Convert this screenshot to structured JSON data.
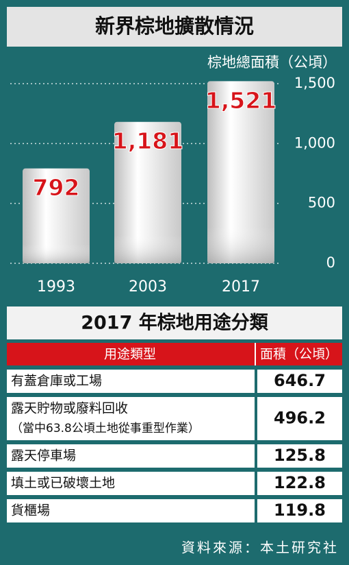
{
  "chart_data": {
    "type": "bar",
    "title": "新界棕地擴散情況",
    "y_label": "棕地總面積（公頃）",
    "categories": [
      "1993",
      "2003",
      "2017"
    ],
    "values": [
      792,
      1181,
      1521
    ],
    "value_labels": [
      "792",
      "1,181",
      "1,521"
    ],
    "color": "#e6e6e6",
    "label_color": "#d7141a",
    "ylim": [
      0,
      1600
    ],
    "yticks": [
      0,
      500,
      {
        "value": 1000,
        "label": "1,000"
      },
      {
        "value": 1500,
        "label": "1,500"
      }
    ],
    "grid": true
  },
  "table": {
    "title": "2017 年棕地用途分類",
    "columns": [
      "用途類型",
      "面積（公頃）"
    ],
    "rows": [
      {
        "use": "有蓋倉庫或工場",
        "area": 646.7
      },
      {
        "use": "露天貯物或廢料回收",
        "note": "（當中63.8公頃土地從事重型作業）",
        "area": 496.2
      },
      {
        "use": "露天停車場",
        "area": 125.8
      },
      {
        "use": "填土或已破壞土地",
        "area": 122.8
      },
      {
        "use": "貨櫃場",
        "area": 119.8
      }
    ]
  },
  "source": "資料來源：本土研究社"
}
